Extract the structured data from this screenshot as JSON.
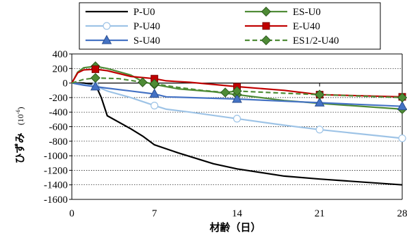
{
  "chart_data": {
    "type": "line",
    "xlabel": "材齢（日）",
    "ylabel_main": "ひずみ",
    "ylabel_unit": "(10",
    "ylabel_unit_exp": "-6",
    "ylabel_unit_close": ")",
    "xlim": [
      0,
      28
    ],
    "ylim": [
      -1600,
      400
    ],
    "xticks": [
      0,
      7,
      14,
      21,
      28
    ],
    "yticks": [
      400,
      200,
      0,
      -200,
      -400,
      -600,
      -800,
      -1000,
      -1200,
      -1400,
      -1600
    ],
    "grid": "horizontal dotted",
    "legend_placement": "top, above plot, 2 columns",
    "series": [
      {
        "name": "P-U0",
        "color": "#000000",
        "marker": "none",
        "dash": "solid",
        "x": [
          0,
          1,
          2,
          2.5,
          3,
          5,
          6,
          7,
          9,
          12,
          14,
          18,
          21,
          28
        ],
        "y": [
          0,
          0,
          -20,
          -200,
          -450,
          -630,
          -730,
          -850,
          -960,
          -1110,
          -1180,
          -1280,
          -1320,
          -1400
        ],
        "marker_x": [],
        "marker_y": []
      },
      {
        "name": "ES-U0",
        "color": "#4e8b35",
        "marker_fill": "#4e8b35",
        "marker": "diamond",
        "dash": "solid",
        "x": [
          0,
          0.5,
          1,
          2,
          3,
          5,
          6,
          7,
          9,
          12,
          14,
          18,
          21,
          28
        ],
        "y": [
          0,
          150,
          210,
          230,
          200,
          110,
          20,
          -20,
          -80,
          -120,
          -160,
          -240,
          -280,
          -360
        ],
        "marker_x": [
          2,
          7,
          14,
          28
        ],
        "marker_y": [
          230,
          -20,
          -160,
          -360
        ]
      },
      {
        "name": "P-U40",
        "color": "#9dc3e6",
        "marker_fill": "#ffffff",
        "marker": "circle",
        "dash": "solid",
        "x": [
          0,
          1,
          2,
          3,
          5,
          7,
          8,
          10,
          14,
          18,
          21,
          28
        ],
        "y": [
          0,
          -20,
          -40,
          -110,
          -200,
          -310,
          -360,
          -400,
          -490,
          -580,
          -640,
          -760
        ],
        "marker_x": [
          2,
          7,
          14,
          21,
          28
        ],
        "marker_y": [
          -40,
          -310,
          -490,
          -640,
          -760
        ]
      },
      {
        "name": "E-U40",
        "color": "#c00000",
        "marker_fill": "#c00000",
        "marker": "square",
        "dash": "solid",
        "x": [
          0,
          0.5,
          1,
          2,
          3,
          5,
          7,
          8,
          10,
          14,
          18,
          21,
          28
        ],
        "y": [
          0,
          140,
          180,
          190,
          170,
          90,
          60,
          30,
          10,
          -50,
          -100,
          -160,
          -190
        ],
        "marker_x": [
          2,
          7,
          14,
          21,
          28
        ],
        "marker_y": [
          190,
          60,
          -50,
          -160,
          -190
        ]
      },
      {
        "name": "S-U40",
        "color": "#4472c4",
        "marker_fill": "#4472c4",
        "marker": "triangle",
        "dash": "solid",
        "x": [
          0,
          1,
          2,
          3,
          5,
          7,
          8,
          10,
          14,
          18,
          21,
          28
        ],
        "y": [
          0,
          -30,
          -50,
          -70,
          -110,
          -150,
          -190,
          -200,
          -220,
          -250,
          -270,
          -320
        ],
        "marker_x": [
          2,
          7,
          14,
          21,
          28
        ],
        "marker_y": [
          -50,
          -150,
          -220,
          -270,
          -320
        ]
      },
      {
        "name": "ES1/2-U40",
        "color": "#4e8b35",
        "marker_fill": "#4e8b35",
        "marker": "diamond",
        "dash": "dashed",
        "x": [
          0,
          1,
          2,
          4,
          6,
          7,
          9,
          11,
          13,
          14,
          18,
          21,
          28
        ],
        "y": [
          0,
          50,
          70,
          60,
          10,
          -10,
          -60,
          -100,
          -130,
          -110,
          -140,
          -160,
          -200
        ],
        "marker_x": [
          2,
          6,
          7,
          13,
          14,
          21,
          28
        ],
        "marker_y": [
          70,
          10,
          -10,
          -130,
          -110,
          -160,
          -200
        ]
      }
    ]
  }
}
